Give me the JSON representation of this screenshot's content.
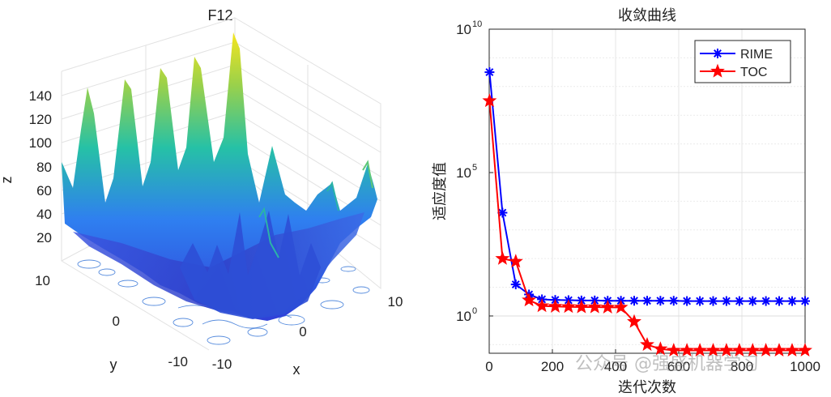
{
  "left_plot": {
    "title": "F12",
    "xlabel": "x",
    "ylabel": "y",
    "zlabel": "z",
    "z_ticks": [
      "20",
      "40",
      "60",
      "80",
      "100",
      "120",
      "140"
    ],
    "x_ticks": [
      "-10",
      "0",
      "10"
    ],
    "y_ticks": [
      "10",
      "0",
      "-10"
    ],
    "colors": {
      "surface_low": "#3a49d9",
      "surface_mid": "#26c1a6",
      "surface_high": "#f5e51f",
      "contour": "#2d6fd6"
    }
  },
  "chart_data": [
    {
      "type": "surface3d",
      "title": "F12",
      "xlabel": "x",
      "ylabel": "y",
      "zlabel": "z",
      "xlim": [
        -10,
        10
      ],
      "ylim": [
        -10,
        10
      ],
      "zlim": [
        0,
        150
      ],
      "peaks_z": [
        150,
        140,
        135,
        128,
        120,
        58,
        55,
        42
      ],
      "z_ticks": [
        20,
        40,
        60,
        80,
        100,
        120,
        140
      ]
    },
    {
      "type": "line",
      "title": "收敛曲线",
      "xlabel": "迭代次数",
      "ylabel": "适应度值",
      "yscale": "log",
      "xlim": [
        0,
        1000
      ],
      "ylim_exp": [
        -1.3,
        10
      ],
      "x_ticks": [
        "0",
        "200",
        "400",
        "600",
        "800",
        "1000"
      ],
      "y_ticks": [
        {
          "base": "10",
          "exp": "10",
          "value_exp": 10
        },
        {
          "base": "10",
          "exp": "5",
          "value_exp": 5
        },
        {
          "base": "10",
          "exp": "0",
          "value_exp": 0
        }
      ],
      "series": [
        {
          "name": "RIME",
          "color": "#0000ff",
          "marker": "asterisk",
          "x": [
            1,
            42,
            84,
            126,
            167,
            209,
            251,
            292,
            334,
            375,
            417,
            459,
            500,
            542,
            584,
            626,
            667,
            709,
            751,
            792,
            834,
            876,
            918,
            959,
            1000
          ],
          "log10_y": [
            8.5,
            3.6,
            1.1,
            0.75,
            0.58,
            0.56,
            0.55,
            0.54,
            0.54,
            0.53,
            0.53,
            0.53,
            0.53,
            0.53,
            0.53,
            0.52,
            0.52,
            0.52,
            0.52,
            0.52,
            0.52,
            0.52,
            0.52,
            0.52,
            0.52
          ]
        },
        {
          "name": "TOC",
          "color": "#ff0000",
          "marker": "pentagram",
          "x": [
            1,
            42,
            84,
            126,
            167,
            209,
            251,
            292,
            334,
            375,
            417,
            459,
            500,
            542,
            584,
            626,
            667,
            709,
            751,
            792,
            834,
            876,
            918,
            959,
            1000
          ],
          "log10_y": [
            7.5,
            2.0,
            1.9,
            0.55,
            0.35,
            0.33,
            0.32,
            0.31,
            0.31,
            0.3,
            0.3,
            -0.2,
            -1.0,
            -1.15,
            -1.2,
            -1.2,
            -1.2,
            -1.2,
            -1.2,
            -1.2,
            -1.2,
            -1.2,
            -1.2,
            -1.2,
            -1.2
          ]
        }
      ],
      "legend": "top-right"
    }
  ],
  "watermark": "公众号 @强盛机器学习"
}
